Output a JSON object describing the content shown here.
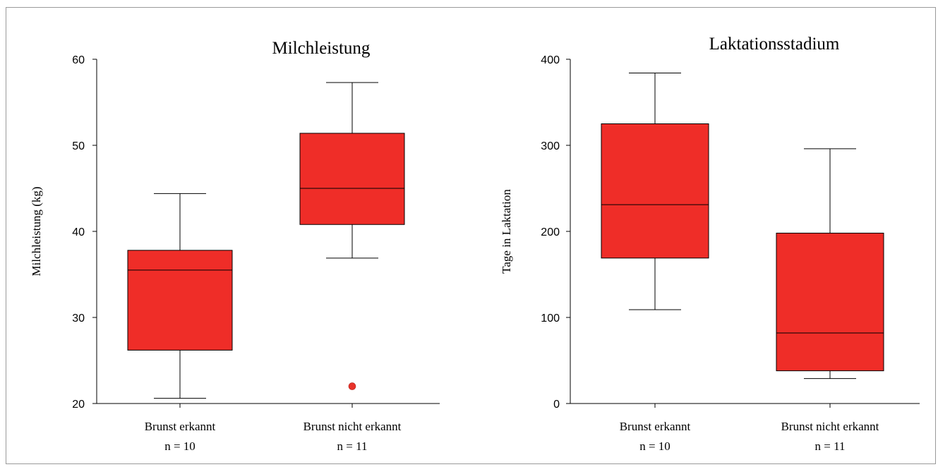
{
  "chart_data": [
    {
      "type": "box",
      "title": "Milchleistung",
      "ylabel": "Milchleistung (kg)",
      "ylim": [
        20,
        60
      ],
      "yticks": [
        20,
        30,
        40,
        50,
        60
      ],
      "categories": [
        "Brunst erkannt",
        "Brunst nicht erkannt"
      ],
      "sublabels": [
        "n = 10",
        "n = 11"
      ],
      "boxes": [
        {
          "min": 20.6,
          "q1": 26.2,
          "median": 35.5,
          "q3": 37.8,
          "max": 44.4,
          "outliers": []
        },
        {
          "min": 36.9,
          "q1": 40.8,
          "median": 45.0,
          "q3": 51.4,
          "max": 57.3,
          "outliers": [
            22.0
          ]
        }
      ],
      "colors": {
        "box": "#ef2d28",
        "outlier": "#e8322a",
        "line": "#000000"
      }
    },
    {
      "type": "box",
      "title": "Laktationsstadium",
      "ylabel": "Tage in Laktation",
      "ylim": [
        0,
        400
      ],
      "yticks": [
        0,
        100,
        200,
        300,
        400
      ],
      "categories": [
        "Brunst erkannt",
        "Brunst nicht erkannt"
      ],
      "sublabels": [
        "n = 10",
        "n = 11"
      ],
      "boxes": [
        {
          "min": 109,
          "q1": 169,
          "median": 231,
          "q3": 325,
          "max": 384,
          "outliers": []
        },
        {
          "min": 29,
          "q1": 38,
          "median": 82,
          "q3": 198,
          "max": 296,
          "outliers": []
        }
      ],
      "colors": {
        "box": "#ef2d28",
        "outlier": "#e8322a",
        "line": "#000000"
      }
    }
  ]
}
